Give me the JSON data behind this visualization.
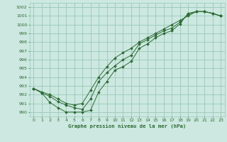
{
  "title": "Graphe pression niveau de la mer (hPa)",
  "bg_color": "#cce8e0",
  "grid_color": "#99c8b8",
  "line_color": "#2d6b35",
  "xlim": [
    -0.5,
    23.5
  ],
  "ylim": [
    989.5,
    1002.5
  ],
  "yticks": [
    990,
    991,
    992,
    993,
    994,
    995,
    996,
    997,
    998,
    999,
    1000,
    1001,
    1002
  ],
  "xticks": [
    0,
    1,
    2,
    3,
    4,
    5,
    6,
    7,
    8,
    9,
    10,
    11,
    12,
    13,
    14,
    15,
    16,
    17,
    18,
    19,
    20,
    21,
    22,
    23
  ],
  "series1_x": [
    0,
    1,
    2,
    3,
    4,
    5,
    6,
    7,
    8,
    9,
    10,
    11,
    12,
    13,
    14,
    15,
    16,
    17,
    18,
    19,
    20,
    21,
    22,
    23
  ],
  "series1_y": [
    992.7,
    992.2,
    991.1,
    990.5,
    990.0,
    990.0,
    990.0,
    990.2,
    992.3,
    993.5,
    994.8,
    995.2,
    995.8,
    997.3,
    997.8,
    998.5,
    999.0,
    999.3,
    1000.1,
    1001.3,
    1001.5,
    1001.5,
    1001.3,
    1001.0
  ],
  "series2_x": [
    0,
    1,
    2,
    3,
    4,
    5,
    6,
    7,
    8,
    9,
    10,
    11,
    12,
    13,
    14,
    15,
    16,
    17,
    18,
    19,
    20,
    21,
    22,
    23
  ],
  "series2_y": [
    992.7,
    992.2,
    991.8,
    991.2,
    990.8,
    990.5,
    990.3,
    991.5,
    993.5,
    994.5,
    995.3,
    996.0,
    996.5,
    997.8,
    998.3,
    998.8,
    999.3,
    999.6,
    1000.3,
    1001.2,
    1001.5,
    1001.5,
    1001.3,
    1001.0
  ],
  "series3_x": [
    0,
    1,
    2,
    3,
    4,
    5,
    6,
    7,
    8,
    9,
    10,
    11,
    12,
    13,
    14,
    15,
    16,
    17,
    18,
    19,
    20,
    21,
    22,
    23
  ],
  "series3_y": [
    992.7,
    992.3,
    992.0,
    991.5,
    991.0,
    990.8,
    991.0,
    992.5,
    994.0,
    995.2,
    996.2,
    996.8,
    997.3,
    998.0,
    998.5,
    999.0,
    999.5,
    1000.0,
    1000.5,
    1001.0,
    1001.5,
    1001.5,
    1001.3,
    1001.0
  ]
}
